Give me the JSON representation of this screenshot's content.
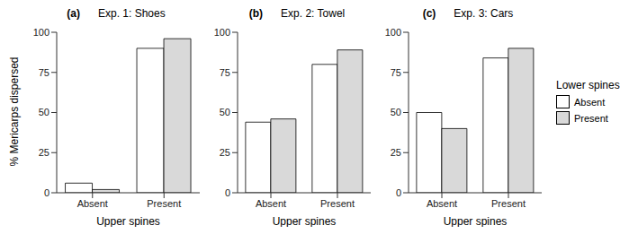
{
  "chart_data": [
    {
      "type": "bar",
      "panel": "(a)",
      "title": "Exp. 1: Shoes",
      "y_label": "% Mericarps dispersed",
      "x_label": "Upper spines",
      "categories": [
        "Absent",
        "Present"
      ],
      "series": [
        {
          "name": "Absent",
          "color": "#ffffff",
          "values": [
            6,
            90
          ]
        },
        {
          "name": "Present",
          "color": "#d9d9d9",
          "values": [
            2,
            96
          ]
        }
      ],
      "ylim": [
        0,
        100
      ],
      "yticks": [
        0,
        25,
        50,
        75,
        100
      ],
      "grid": false
    },
    {
      "type": "bar",
      "panel": "(b)",
      "title": "Exp. 2: Towel",
      "x_label": "Upper spines",
      "categories": [
        "Absent",
        "Present"
      ],
      "series": [
        {
          "name": "Absent",
          "color": "#ffffff",
          "values": [
            44,
            80
          ]
        },
        {
          "name": "Present",
          "color": "#d9d9d9",
          "values": [
            46,
            89
          ]
        }
      ],
      "ylim": [
        0,
        100
      ],
      "yticks": [
        0,
        25,
        50,
        75,
        100
      ],
      "grid": false
    },
    {
      "type": "bar",
      "panel": "(c)",
      "title": "Exp. 3: Cars",
      "x_label": "Upper spines",
      "categories": [
        "Absent",
        "Present"
      ],
      "series": [
        {
          "name": "Absent",
          "color": "#ffffff",
          "values": [
            50,
            84
          ]
        },
        {
          "name": "Present",
          "color": "#d9d9d9",
          "values": [
            40,
            90
          ]
        }
      ],
      "ylim": [
        0,
        100
      ],
      "yticks": [
        0,
        25,
        50,
        75,
        100
      ],
      "grid": false,
      "legend": "right",
      "legend_title": "Lower spines"
    }
  ]
}
